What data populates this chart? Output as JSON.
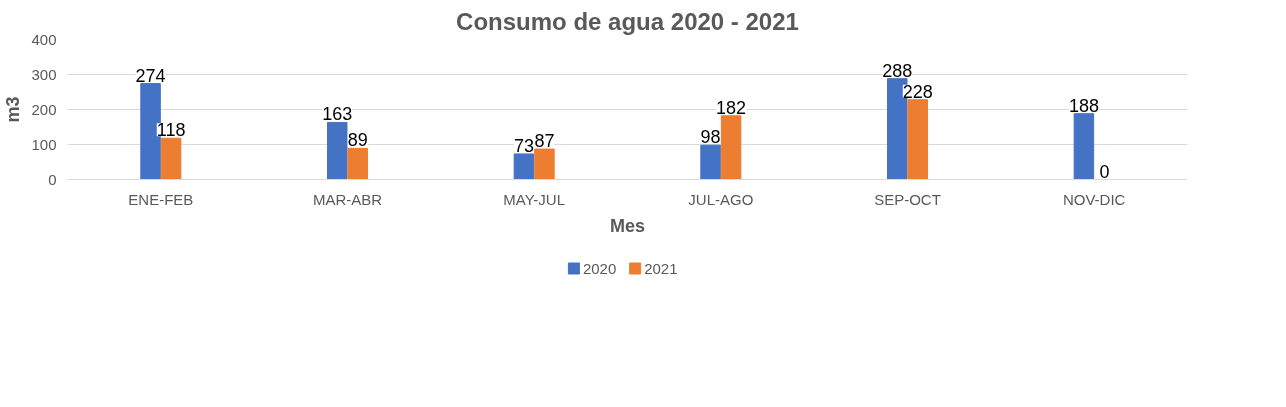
{
  "chart_data": {
    "type": "bar",
    "title": "Consumo de agua 2020 - 2021",
    "xlabel": "Mes",
    "ylabel": "m3",
    "categories": [
      "ENE-FEB",
      "MAR-ABR",
      "MAY-JUL",
      "JUL-AGO",
      "SEP-OCT",
      "NOV-DIC"
    ],
    "series": [
      {
        "name": "2020",
        "color": "#4472c4",
        "values": [
          274,
          163,
          73,
          98,
          288,
          188
        ]
      },
      {
        "name": "2021",
        "color": "#ed7d31",
        "values": [
          118,
          89,
          87,
          182,
          228,
          0
        ]
      }
    ],
    "ylim": [
      0,
      400
    ],
    "yticks": [
      0,
      100,
      200,
      300,
      400
    ],
    "grid": "y",
    "legend": "bottom",
    "data_labels": true
  }
}
